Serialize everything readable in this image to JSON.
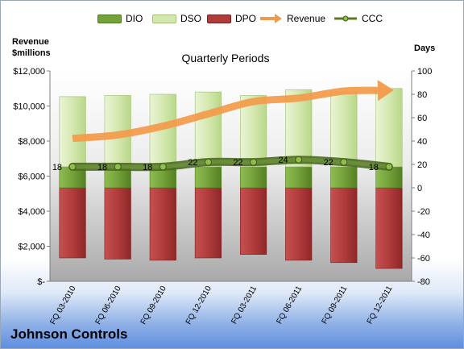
{
  "page": {
    "company": "Johnson Controls"
  },
  "legend": [
    {
      "label": "DIO",
      "key": "dio"
    },
    {
      "label": "DSO",
      "key": "dso"
    },
    {
      "label": "DPO",
      "key": "dpo"
    },
    {
      "label": "Revenue",
      "key": "revenue"
    },
    {
      "label": "CCC",
      "key": "ccc"
    }
  ],
  "colors": {
    "dio": "#74a13a",
    "dso": "#d5e8b0",
    "dpo": "#b03c3c",
    "revenue": "#f39a4a",
    "ccc": "#5a7a2a"
  },
  "chart_data": {
    "type": "bar",
    "title": "Quarterly Periods",
    "left_axis_title": [
      "Revenue",
      "$millions"
    ],
    "right_axis_title": "Days",
    "categories": [
      "FQ 03-2010",
      "FQ 06-2010",
      "FQ 09-2010",
      "FQ 12-2010",
      "FQ 03-2011",
      "FQ 06-2011",
      "FQ 09-2011",
      "FQ 12-2011"
    ],
    "left_ylim": [
      0,
      12000
    ],
    "left_ticks": [
      "$-",
      "$2,000",
      "$4,000",
      "$6,000",
      "$8,000",
      "$10,000",
      "$12,000"
    ],
    "right_ylim": [
      -80,
      100
    ],
    "right_ticks": [
      "-80",
      "-60",
      "-40",
      "-20",
      "0",
      "20",
      "40",
      "60",
      "80",
      "100"
    ],
    "grid": false,
    "legend_position": "top",
    "series": [
      {
        "name": "DIO",
        "axis": "days",
        "values": [
          18,
          18,
          18,
          18,
          18,
          18,
          18,
          18
        ]
      },
      {
        "name": "DSO",
        "axis": "days",
        "values": [
          60,
          61,
          62,
          64,
          61,
          66,
          64,
          67
        ]
      },
      {
        "name": "DPO",
        "axis": "days",
        "values": [
          -60,
          -61,
          -62,
          -60,
          -57,
          -62,
          -64,
          -69
        ]
      },
      {
        "name": "Revenue",
        "axis": "revenue",
        "values": [
          8150,
          8350,
          8850,
          9550,
          10250,
          10450,
          10850,
          10900
        ]
      },
      {
        "name": "CCC",
        "axis": "days",
        "values": [
          18,
          18,
          18,
          22,
          22,
          24,
          22,
          18
        ]
      }
    ],
    "ccc_labels": [
      "18",
      "18",
      "18",
      "22",
      "22",
      "24",
      "22",
      "18"
    ]
  }
}
